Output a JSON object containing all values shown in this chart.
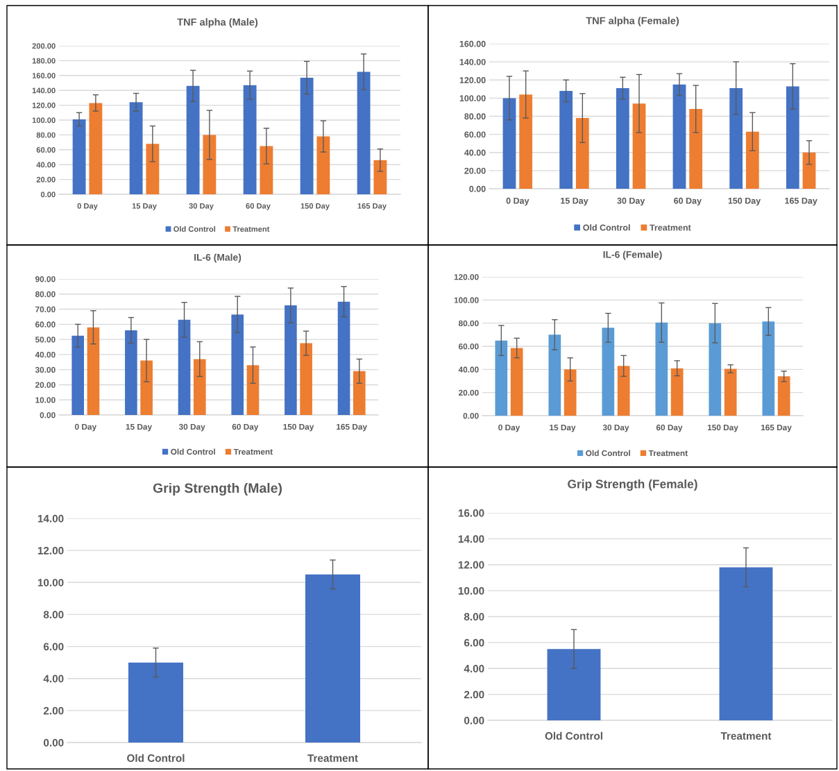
{
  "chart_data": [
    {
      "type": "bar",
      "title": "TNF alpha (Male)",
      "categories": [
        "0 Day",
        "15 Day",
        "30 Day",
        "60 Day",
        "150 Day",
        "165 Day"
      ],
      "series": [
        {
          "name": "Old Control",
          "color": "#4472c4",
          "values": [
            101,
            124,
            146,
            147,
            157,
            165
          ],
          "errors": [
            9,
            12,
            21,
            19,
            22,
            24
          ]
        },
        {
          "name": "Treatment",
          "color": "#ed7d31",
          "values": [
            123,
            68,
            80,
            65,
            78,
            46
          ],
          "errors": [
            11,
            24,
            33,
            24,
            21,
            15
          ]
        }
      ],
      "ylim": [
        0,
        200
      ],
      "yticks": [
        {
          "value": 0,
          "label": "0.00"
        },
        {
          "value": 20,
          "label": "20.00"
        },
        {
          "value": 40,
          "label": "40.00"
        },
        {
          "value": 60,
          "label": "60.00"
        },
        {
          "value": 80,
          "label": "80.00"
        },
        {
          "value": 100,
          "label": "100.00"
        },
        {
          "value": 120,
          "label": "120.00"
        },
        {
          "value": 140,
          "label": "140.00"
        },
        {
          "value": 160,
          "label": "160.00"
        },
        {
          "value": 180,
          "label": "180.00"
        },
        {
          "value": 200,
          "label": "200.00"
        }
      ],
      "grid": "y",
      "legend": "bottom"
    },
    {
      "type": "bar",
      "title": "TNF alpha (Female)",
      "categories": [
        "0 Day",
        "15 Day",
        "30 Day",
        "60 Day",
        "150 Day",
        "165 Day"
      ],
      "series": [
        {
          "name": "Old Control",
          "color": "#4472c4",
          "values": [
            100,
            108,
            111,
            115,
            111,
            113
          ],
          "errors": [
            24,
            12,
            12,
            12,
            29,
            25
          ]
        },
        {
          "name": "Treatment",
          "color": "#ed7d31",
          "values": [
            104,
            78,
            94,
            88,
            63,
            40
          ],
          "errors": [
            26,
            27,
            32,
            26,
            21,
            13
          ]
        }
      ],
      "ylim": [
        0,
        160
      ],
      "yticks": [
        {
          "value": 0,
          "label": "0.00"
        },
        {
          "value": 20,
          "label": "20.00"
        },
        {
          "value": 40,
          "label": "40.00"
        },
        {
          "value": 60,
          "label": "60.00"
        },
        {
          "value": 80,
          "label": "80.00"
        },
        {
          "value": 100,
          "label": "100.00"
        },
        {
          "value": 120,
          "label": "120.00"
        },
        {
          "value": 140,
          "label": "140.00"
        },
        {
          "value": 160,
          "label": "160.00"
        }
      ],
      "grid": "y",
      "legend": "bottom"
    },
    {
      "type": "bar",
      "title": "IL-6 (Male)",
      "categories": [
        "0 Day",
        "15 Day",
        "30 Day",
        "60 Day",
        "150 Day",
        "165 Day"
      ],
      "series": [
        {
          "name": "Old Control",
          "color": "#4472c4",
          "values": [
            52.5,
            56,
            63,
            66.5,
            72.5,
            75
          ],
          "errors": [
            7.5,
            8.5,
            11.5,
            12,
            11.5,
            10
          ]
        },
        {
          "name": "Treatment",
          "color": "#ed7d31",
          "values": [
            58,
            36,
            37,
            33,
            47.5,
            29
          ],
          "errors": [
            11,
            14,
            11.5,
            12,
            8,
            8
          ]
        }
      ],
      "ylim": [
        0,
        90
      ],
      "yticks": [
        {
          "value": 0,
          "label": "0.00"
        },
        {
          "value": 10,
          "label": "10.00"
        },
        {
          "value": 20,
          "label": "20.00"
        },
        {
          "value": 30,
          "label": "30.00"
        },
        {
          "value": 40,
          "label": "40.00"
        },
        {
          "value": 50,
          "label": "50.00"
        },
        {
          "value": 60,
          "label": "60.00"
        },
        {
          "value": 70,
          "label": "70.00"
        },
        {
          "value": 80,
          "label": "80.00"
        },
        {
          "value": 90,
          "label": "90.00"
        }
      ],
      "grid": "y",
      "legend": "bottom"
    },
    {
      "type": "bar",
      "title": "IL-6 (Female)",
      "categories": [
        "0 Day",
        "15 Day",
        "30 Day",
        "60 Day",
        "150 Day",
        "165 Day"
      ],
      "series": [
        {
          "name": "Old Control",
          "color": "#5b9bd5",
          "values": [
            65,
            70,
            76,
            80.5,
            80,
            81.5
          ],
          "errors": [
            13,
            13,
            12.5,
            17,
            17,
            12
          ]
        },
        {
          "name": "Treatment",
          "color": "#ed7d31",
          "values": [
            58.5,
            40,
            43,
            41,
            40.5,
            34
          ],
          "errors": [
            8.5,
            10,
            9,
            6.5,
            3.5,
            4.5
          ]
        }
      ],
      "ylim": [
        0,
        120
      ],
      "yticks": [
        {
          "value": 0,
          "label": "0.00"
        },
        {
          "value": 20,
          "label": "20.00"
        },
        {
          "value": 40,
          "label": "40.00"
        },
        {
          "value": 60,
          "label": "60.00"
        },
        {
          "value": 80,
          "label": "80.00"
        },
        {
          "value": 100,
          "label": "100.00"
        },
        {
          "value": 120,
          "label": "120.00"
        }
      ],
      "grid": "y",
      "legend": "bottom"
    },
    {
      "type": "bar",
      "title": "Grip Strength (Male)",
      "categories": [
        "Old Control",
        "Treatment"
      ],
      "series": [
        {
          "color": "#4472c4",
          "values": [
            5.0,
            10.5
          ],
          "errors": [
            0.9,
            0.9
          ]
        }
      ],
      "ylim": [
        0,
        14
      ],
      "yticks": [
        {
          "value": 0,
          "label": "0.00"
        },
        {
          "value": 2,
          "label": "2.00"
        },
        {
          "value": 4,
          "label": "4.00"
        },
        {
          "value": 6,
          "label": "6.00"
        },
        {
          "value": 8,
          "label": "8.00"
        },
        {
          "value": 10,
          "label": "10.00"
        },
        {
          "value": 12,
          "label": "12.00"
        },
        {
          "value": 14,
          "label": "14.00"
        }
      ],
      "grid": "y"
    },
    {
      "type": "bar",
      "title": "Grip Strength (Female)",
      "categories": [
        "Old Control",
        "Treatment"
      ],
      "series": [
        {
          "color": "#4472c4",
          "values": [
            5.5,
            11.8
          ],
          "errors": [
            1.5,
            1.5
          ]
        }
      ],
      "ylim": [
        0,
        16
      ],
      "yticks": [
        {
          "value": 0,
          "label": "0.00"
        },
        {
          "value": 2,
          "label": "2.00"
        },
        {
          "value": 4,
          "label": "4.00"
        },
        {
          "value": 6,
          "label": "6.00"
        },
        {
          "value": 8,
          "label": "8.00"
        },
        {
          "value": 10,
          "label": "10.00"
        },
        {
          "value": 12,
          "label": "12.00"
        },
        {
          "value": 14,
          "label": "14.00"
        },
        {
          "value": 16,
          "label": "16.00"
        }
      ],
      "grid": "y"
    }
  ]
}
